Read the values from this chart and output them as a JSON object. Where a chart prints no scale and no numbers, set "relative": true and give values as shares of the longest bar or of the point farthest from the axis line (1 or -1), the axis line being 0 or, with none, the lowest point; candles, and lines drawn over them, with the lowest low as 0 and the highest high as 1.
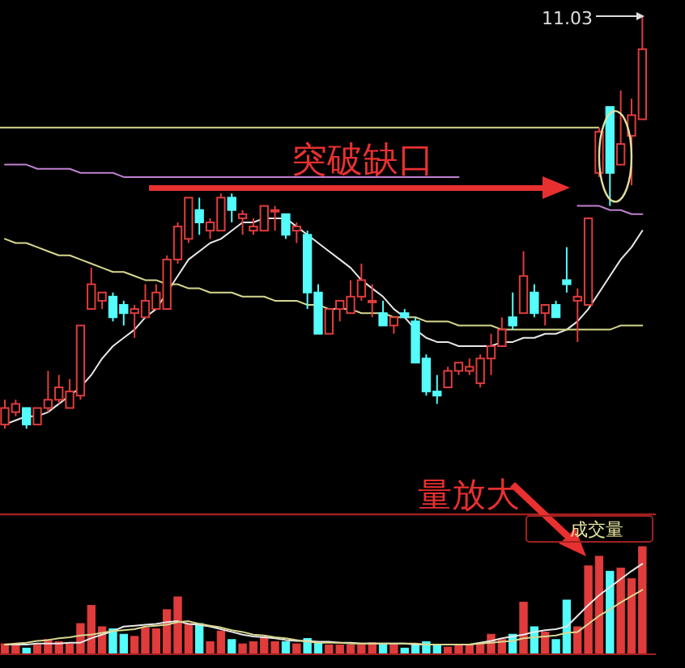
{
  "chart_data": [
    {
      "type": "candlestick",
      "relative": true,
      "categories": [
        null,
        null,
        null,
        null,
        null,
        null,
        null,
        null,
        null,
        null,
        null,
        null,
        null,
        null,
        null,
        null,
        null,
        null,
        null,
        null,
        null,
        null,
        null,
        null,
        null,
        null,
        null,
        null,
        null,
        null,
        null,
        null,
        null,
        null,
        null,
        null,
        null,
        null,
        null,
        null,
        null,
        null,
        null,
        null,
        null,
        null,
        null,
        null,
        null,
        null,
        null,
        null,
        null,
        null,
        null,
        null,
        null,
        null,
        null,
        null
      ],
      "ohlc": [
        [
          0.01,
          0.07,
          0,
          0.05
        ],
        [
          0.04,
          0.07,
          0.03,
          0.06
        ],
        [
          0.05,
          0.05,
          0,
          0.01
        ],
        [
          0.01,
          0.05,
          0.01,
          0.05
        ],
        [
          0.05,
          0.14,
          0.04,
          0.07
        ],
        [
          0.07,
          0.13,
          0.06,
          0.1
        ],
        [
          0.05,
          0.12,
          0.05,
          0.09
        ],
        [
          0.08,
          0.25,
          0.07,
          0.25
        ],
        [
          0.29,
          0.39,
          0.29,
          0.35
        ],
        [
          0.31,
          0.33,
          0.29,
          0.33
        ],
        [
          0.32,
          0.33,
          0.26,
          0.27
        ],
        [
          0.3,
          0.31,
          0.25,
          0.28
        ],
        [
          0.28,
          0.3,
          0.22,
          0.29
        ],
        [
          0.27,
          0.35,
          0.27,
          0.31
        ],
        [
          0.29,
          0.35,
          0.29,
          0.33
        ],
        [
          0.29,
          0.42,
          0.29,
          0.41
        ],
        [
          0.41,
          0.5,
          0.4,
          0.49
        ],
        [
          0.46,
          0.56,
          0.45,
          0.56
        ],
        [
          0.53,
          0.56,
          0.47,
          0.5
        ],
        [
          0.48,
          0.51,
          0.46,
          0.5
        ],
        [
          0.48,
          0.57,
          0.48,
          0.56
        ],
        [
          0.56,
          0.57,
          0.5,
          0.53
        ],
        [
          0.51,
          0.53,
          0.47,
          0.52
        ],
        [
          0.48,
          0.51,
          0.47,
          0.49
        ],
        [
          0.48,
          0.54,
          0.48,
          0.54
        ],
        [
          0.53,
          0.54,
          0.48,
          0.53
        ],
        [
          0.52,
          0.52,
          0.46,
          0.47
        ],
        [
          0.48,
          0.5,
          0.45,
          0.49
        ],
        [
          0.47,
          0.48,
          0.29,
          0.33
        ],
        [
          0.33,
          0.35,
          0.23,
          0.23
        ],
        [
          0.23,
          0.29,
          0.23,
          0.29
        ],
        [
          0.29,
          0.31,
          0.26,
          0.31
        ],
        [
          0.28,
          0.36,
          0.28,
          0.32
        ],
        [
          0.32,
          0.4,
          0.31,
          0.36
        ],
        [
          0.31,
          0.35,
          0.27,
          0.31
        ],
        [
          0.28,
          0.31,
          0.25,
          0.25
        ],
        [
          0.25,
          0.27,
          0.23,
          0.27
        ],
        [
          0.28,
          0.29,
          0.27,
          0.27
        ],
        [
          0.26,
          0.27,
          0.16,
          0.16
        ],
        [
          0.17,
          0.18,
          0.08,
          0.09
        ],
        [
          0.09,
          0.13,
          0.06,
          0.08
        ],
        [
          0.1,
          0.15,
          0.1,
          0.14
        ],
        [
          0.14,
          0.16,
          0.13,
          0.16
        ],
        [
          0.14,
          0.17,
          0.13,
          0.15
        ],
        [
          0.11,
          0.18,
          0.1,
          0.17
        ],
        [
          0.17,
          0.23,
          0.13,
          0.2
        ],
        [
          0.2,
          0.27,
          0.2,
          0.24
        ],
        [
          0.27,
          0.33,
          0.24,
          0.25
        ],
        [
          0.28,
          0.43,
          0.28,
          0.37
        ],
        [
          0.33,
          0.35,
          0.27,
          0.28
        ],
        [
          0.28,
          0.3,
          0.25,
          0.3
        ],
        [
          0.3,
          0.31,
          0.27,
          0.27
        ],
        [
          0.36,
          0.44,
          0.33,
          0.35
        ],
        [
          0.31,
          0.34,
          0.21,
          0.32
        ],
        [
          0.3,
          0.51,
          0.3,
          0.51
        ],
        [
          0.62,
          0.73,
          0.61,
          0.72
        ],
        [
          0.78,
          0.78,
          0.54,
          0.62
        ],
        [
          0.64,
          0.82,
          0.64,
          0.69
        ],
        [
          0.71,
          0.8,
          0.59,
          0.76
        ],
        [
          0.75,
          1,
          0.75,
          0.92
        ]
      ],
      "colors": [
        "#e03c3c",
        "#e03c3c",
        "#54fcfc",
        "#e03c3c",
        "#e03c3c",
        "#e03c3c",
        "#e03c3c",
        "#e03c3c",
        "#e03c3c",
        "#e03c3c",
        "#54fcfc",
        "#54fcfc",
        "#e03c3c",
        "#e03c3c",
        "#e03c3c",
        "#e03c3c",
        "#e03c3c",
        "#e03c3c",
        "#54fcfc",
        "#e03c3c",
        "#e03c3c",
        "#54fcfc",
        "#e03c3c",
        "#e03c3c",
        "#e03c3c",
        "#e03c3c",
        "#54fcfc",
        "#e03c3c",
        "#54fcfc",
        "#54fcfc",
        "#e03c3c",
        "#e03c3c",
        "#e03c3c",
        "#e03c3c",
        "#e03c3c",
        "#54fcfc",
        "#e03c3c",
        "#54fcfc",
        "#54fcfc",
        "#54fcfc",
        "#54fcfc",
        "#e03c3c",
        "#e03c3c",
        "#e03c3c",
        "#e03c3c",
        "#e03c3c",
        "#e03c3c",
        "#54fcfc",
        "#e03c3c",
        "#54fcfc",
        "#e03c3c",
        "#54fcfc",
        "#54fcfc",
        "#e03c3c",
        "#e03c3c",
        "#e03c3c",
        "#54fcfc",
        "#e03c3c",
        "#e03c3c",
        "#e03c3c"
      ],
      "series": [
        {
          "type": "line",
          "color": "#e8e8e8",
          "values": [
            0.01,
            0.02,
            0.03,
            0.03,
            0.04,
            0.06,
            0.08,
            0.1,
            0.13,
            0.17,
            0.2,
            0.22,
            0.24,
            0.27,
            0.29,
            0.33,
            0.37,
            0.41,
            0.43,
            0.45,
            0.46,
            0.48,
            0.5,
            0.5,
            0.51,
            0.51,
            0.51,
            0.49,
            0.47,
            0.45,
            0.43,
            0.41,
            0.39,
            0.36,
            0.34,
            0.32,
            0.29,
            0.27,
            0.24,
            0.22,
            0.21,
            0.21,
            0.2,
            0.2,
            0.2,
            0.2,
            0.21,
            0.21,
            0.22,
            0.22,
            0.23,
            0.23,
            0.24,
            0.26,
            0.29,
            0.33,
            0.37,
            0.41,
            0.44,
            0.48
          ]
        },
        {
          "type": "line",
          "color": "#d8d890",
          "values": [
            0.46,
            0.45,
            0.45,
            0.44,
            0.43,
            0.42,
            0.42,
            0.41,
            0.4,
            0.39,
            0.38,
            0.38,
            0.37,
            0.36,
            0.36,
            0.35,
            0.35,
            0.34,
            0.34,
            0.33,
            0.33,
            0.33,
            0.32,
            0.32,
            0.32,
            0.31,
            0.31,
            0.31,
            0.3,
            0.3,
            0.29,
            0.29,
            0.29,
            0.28,
            0.28,
            0.28,
            0.27,
            0.27,
            0.27,
            0.26,
            0.26,
            0.26,
            0.25,
            0.25,
            0.25,
            0.25,
            0.24,
            0.24,
            0.24,
            0.24,
            0.24,
            0.24,
            0.24,
            0.24,
            0.24,
            0.24,
            0.24,
            0.25,
            0.25,
            0.25
          ]
        },
        {
          "type": "line",
          "color": "#c080d0",
          "values": [
            0.64,
            0.64,
            0.64,
            0.63,
            0.63,
            0.63,
            0.63,
            0.62,
            0.62,
            0.62,
            0.62,
            0.61,
            0.61,
            0.61,
            0.61,
            0.61,
            0.61,
            0.61,
            0.61,
            0.61,
            0.61,
            0.61,
            0.61,
            0.61,
            0.61,
            0.61,
            0.61,
            0.61,
            0.61,
            0.61,
            0.61,
            0.61,
            0.61,
            0.61,
            0.61,
            0.61,
            0.61,
            0.61,
            0.61,
            0.61,
            0.61,
            0.61,
            0.61,
            null,
            null,
            null,
            null,
            null,
            null,
            null,
            null,
            null,
            null,
            0.54,
            0.54,
            0.54,
            0.53,
            0.53,
            0.52,
            0.52
          ]
        }
      ],
      "ref_lines": [
        {
          "axis": "y",
          "value": 0.73,
          "color": "#d8d890"
        }
      ],
      "annotations": [
        "11.03",
        "突破缺口"
      ]
    },
    {
      "type": "bar",
      "relative": true,
      "categories": [
        null,
        null,
        null,
        null,
        null,
        null,
        null,
        null,
        null,
        null,
        null,
        null,
        null,
        null,
        null,
        null,
        null,
        null,
        null,
        null,
        null,
        null,
        null,
        null,
        null,
        null,
        null,
        null,
        null,
        null,
        null,
        null,
        null,
        null,
        null,
        null,
        null,
        null,
        null,
        null,
        null,
        null,
        null,
        null,
        null,
        null,
        null,
        null,
        null,
        null,
        null,
        null,
        null,
        null,
        null,
        null,
        null,
        null,
        null,
        null
      ],
      "series": [
        {
          "type": "bar",
          "values": [
            0.09,
            0.09,
            0.05,
            0.08,
            0.13,
            0.11,
            0.09,
            0.28,
            0.45,
            0.25,
            0.23,
            0.18,
            0.16,
            0.24,
            0.23,
            0.41,
            0.53,
            0.28,
            0.28,
            0.11,
            0.21,
            0.13,
            0.09,
            0.11,
            0.15,
            0.11,
            0.11,
            0.09,
            0.14,
            0.11,
            0.08,
            0.08,
            0.08,
            0.08,
            0.1,
            0.09,
            0.09,
            0.05,
            0.08,
            0.11,
            0.08,
            0.06,
            0.08,
            0.08,
            0.09,
            0.18,
            0.13,
            0.18,
            0.48,
            0.25,
            0.2,
            0.13,
            0.5,
            0.25,
            0.82,
            0.91,
            0.77,
            0.8,
            0.7,
            1
          ],
          "colors": [
            "#e03c3c",
            "#e03c3c",
            "#54fcfc",
            "#e03c3c",
            "#e03c3c",
            "#e03c3c",
            "#e03c3c",
            "#e03c3c",
            "#e03c3c",
            "#e03c3c",
            "#54fcfc",
            "#54fcfc",
            "#e03c3c",
            "#e03c3c",
            "#e03c3c",
            "#e03c3c",
            "#e03c3c",
            "#e03c3c",
            "#54fcfc",
            "#e03c3c",
            "#e03c3c",
            "#54fcfc",
            "#e03c3c",
            "#e03c3c",
            "#e03c3c",
            "#e03c3c",
            "#54fcfc",
            "#e03c3c",
            "#54fcfc",
            "#54fcfc",
            "#e03c3c",
            "#e03c3c",
            "#e03c3c",
            "#e03c3c",
            "#e03c3c",
            "#54fcfc",
            "#e03c3c",
            "#54fcfc",
            "#54fcfc",
            "#54fcfc",
            "#54fcfc",
            "#e03c3c",
            "#e03c3c",
            "#e03c3c",
            "#e03c3c",
            "#e03c3c",
            "#e03c3c",
            "#54fcfc",
            "#e03c3c",
            "#54fcfc",
            "#e03c3c",
            "#54fcfc",
            "#54fcfc",
            "#e03c3c",
            "#e03c3c",
            "#e03c3c",
            "#54fcfc",
            "#e03c3c",
            "#e03c3c",
            "#e03c3c"
          ]
        }
      ],
      "annotations": [
        "量放大",
        "成交量"
      ]
    },
    {
      "type": "line",
      "relative": true,
      "categories": [
        null,
        null,
        null,
        null,
        null,
        null,
        null,
        null,
        null,
        null,
        null,
        null,
        null,
        null,
        null,
        null,
        null,
        null,
        null,
        null,
        null,
        null,
        null,
        null,
        null,
        null,
        null,
        null,
        null,
        null,
        null,
        null,
        null,
        null,
        null,
        null,
        null,
        null,
        null,
        null,
        null,
        null,
        null,
        null,
        null,
        null,
        null,
        null,
        null,
        null,
        null,
        null,
        null,
        null,
        null,
        null,
        null,
        null,
        null,
        null
      ],
      "series": [
        {
          "color": "#e8e8e8",
          "values": [
            0.1,
            0.1,
            0.1,
            0.11,
            0.11,
            0.11,
            0.12,
            0.12,
            0.17,
            0.21,
            0.25,
            0.3,
            0.31,
            0.32,
            0.33,
            0.35,
            0.36,
            0.33,
            0.32,
            0.3,
            0.27,
            0.24,
            0.21,
            0.19,
            0.18,
            0.17,
            0.15,
            0.14,
            0.14,
            0.13,
            0.13,
            0.12,
            0.12,
            0.11,
            0.11,
            0.11,
            0.11,
            0.11,
            0.1,
            0.1,
            0.1,
            0.1,
            0.1,
            0.1,
            0.12,
            0.14,
            0.17,
            0.19,
            0.21,
            0.24,
            0.26,
            0.27,
            0.3,
            0.42,
            0.54,
            0.65,
            0.74,
            0.83,
            0.92,
            1
          ]
        },
        {
          "color": "#d8d890",
          "values": [
            0.1,
            0.11,
            0.12,
            0.14,
            0.15,
            0.17,
            0.18,
            0.2,
            0.21,
            0.23,
            0.25,
            0.26,
            0.27,
            0.3,
            0.31,
            0.32,
            0.35,
            0.36,
            0.33,
            0.31,
            0.29,
            0.26,
            0.24,
            0.21,
            0.2,
            0.18,
            0.17,
            0.15,
            0.13,
            0.12,
            0.12,
            0.12,
            0.11,
            0.11,
            0.11,
            0.11,
            0.11,
            0.11,
            0.11,
            0.1,
            0.1,
            0.1,
            0.1,
            0.1,
            0.11,
            0.12,
            0.13,
            0.14,
            0.17,
            0.18,
            0.19,
            0.2,
            0.23,
            0.24,
            0.33,
            0.42,
            0.49,
            0.57,
            0.64,
            0.71
          ]
        }
      ]
    }
  ]
}
